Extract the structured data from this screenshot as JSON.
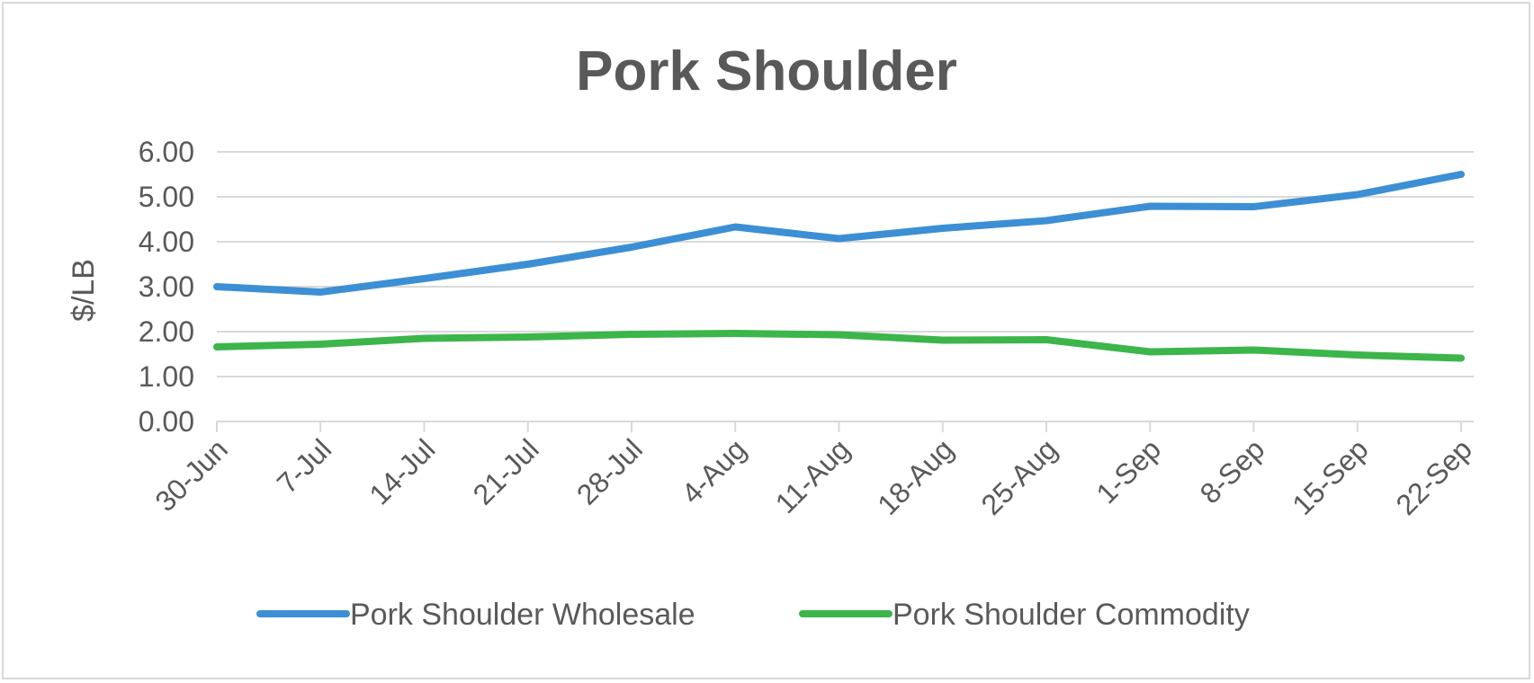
{
  "chart_data": {
    "type": "line",
    "title": "Pork Shoulder",
    "xlabel": "",
    "ylabel": "$/LB",
    "ylim": [
      0,
      6
    ],
    "yticks": [
      "0.00",
      "1.00",
      "2.00",
      "3.00",
      "4.00",
      "5.00",
      "6.00"
    ],
    "categories": [
      "30-Jun",
      "7-Jul",
      "14-Jul",
      "21-Jul",
      "28-Jul",
      "4-Aug",
      "11-Aug",
      "18-Aug",
      "25-Aug",
      "1-Sep",
      "8-Sep",
      "15-Sep",
      "22-Sep"
    ],
    "series": [
      {
        "name": "Pork Shoulder Wholesale",
        "color": "#3c8fd4",
        "values": [
          3.0,
          2.88,
          3.18,
          3.5,
          3.88,
          4.33,
          4.07,
          4.3,
          4.47,
          4.79,
          4.78,
          5.05,
          5.5
        ]
      },
      {
        "name": "Pork Shoulder Commodity",
        "color": "#3cb54a",
        "values": [
          1.66,
          1.72,
          1.85,
          1.88,
          1.94,
          1.96,
          1.93,
          1.81,
          1.82,
          1.55,
          1.59,
          1.48,
          1.41
        ]
      }
    ],
    "grid": true,
    "legend": "bottom"
  }
}
